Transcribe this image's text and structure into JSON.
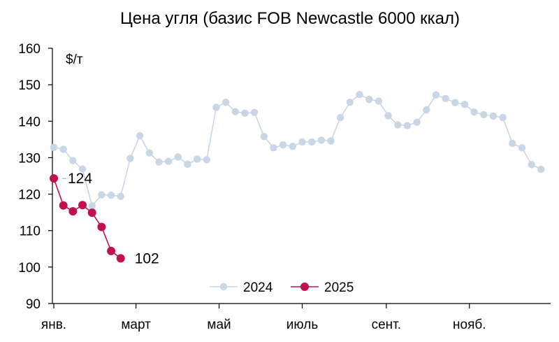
{
  "chart_data": {
    "type": "line",
    "title": "Цена угля (базис FOB Newcastle 6000 ккал)",
    "unit_label": "$/т",
    "ylim": [
      90,
      160
    ],
    "yticks": [
      90,
      100,
      110,
      120,
      130,
      140,
      150,
      160
    ],
    "x_unit": "week",
    "x_range": [
      0,
      52
    ],
    "xticks": [
      {
        "label": "янв.",
        "x": 0
      },
      {
        "label": "март",
        "x": 8.6
      },
      {
        "label": "май",
        "x": 17.3
      },
      {
        "label": "июль",
        "x": 26
      },
      {
        "label": "сент.",
        "x": 34.8
      },
      {
        "label": "нояб.",
        "x": 43.5
      }
    ],
    "legend_position": "bottom-center",
    "grid": false,
    "series": [
      {
        "name": "2024",
        "color": "#c9d6e6",
        "values": [
          {
            "x": 0,
            "y": 132.8
          },
          {
            "x": 1,
            "y": 132.3
          },
          {
            "x": 2,
            "y": 129.2
          },
          {
            "x": 3,
            "y": 126.9
          },
          {
            "x": 4,
            "y": 116.8
          },
          {
            "x": 5,
            "y": 119.8
          },
          {
            "x": 6,
            "y": 119.7
          },
          {
            "x": 7,
            "y": 119.4
          },
          {
            "x": 8,
            "y": 129.8
          },
          {
            "x": 9,
            "y": 136.0
          },
          {
            "x": 10,
            "y": 131.3
          },
          {
            "x": 11,
            "y": 128.8
          },
          {
            "x": 12,
            "y": 129.0
          },
          {
            "x": 13,
            "y": 130.2
          },
          {
            "x": 14,
            "y": 128.2
          },
          {
            "x": 15,
            "y": 129.6
          },
          {
            "x": 16,
            "y": 129.4
          },
          {
            "x": 17,
            "y": 143.8
          },
          {
            "x": 18,
            "y": 145.2
          },
          {
            "x": 19,
            "y": 142.6
          },
          {
            "x": 20,
            "y": 142.2
          },
          {
            "x": 21,
            "y": 142.4
          },
          {
            "x": 22,
            "y": 135.8
          },
          {
            "x": 23,
            "y": 132.7
          },
          {
            "x": 24,
            "y": 133.5
          },
          {
            "x": 25,
            "y": 133.1
          },
          {
            "x": 26,
            "y": 134.3
          },
          {
            "x": 27,
            "y": 134.3
          },
          {
            "x": 28,
            "y": 134.8
          },
          {
            "x": 29,
            "y": 134.6
          },
          {
            "x": 30,
            "y": 141.0
          },
          {
            "x": 31,
            "y": 145.2
          },
          {
            "x": 32,
            "y": 147.3
          },
          {
            "x": 33,
            "y": 146.0
          },
          {
            "x": 34,
            "y": 145.5
          },
          {
            "x": 35,
            "y": 141.5
          },
          {
            "x": 36,
            "y": 139.0
          },
          {
            "x": 37,
            "y": 138.8
          },
          {
            "x": 38,
            "y": 139.7
          },
          {
            "x": 39,
            "y": 143.1
          },
          {
            "x": 40,
            "y": 147.2
          },
          {
            "x": 41,
            "y": 146.2
          },
          {
            "x": 42,
            "y": 145.1
          },
          {
            "x": 43,
            "y": 144.6
          },
          {
            "x": 44,
            "y": 142.5
          },
          {
            "x": 45,
            "y": 141.8
          },
          {
            "x": 46,
            "y": 141.4
          },
          {
            "x": 47,
            "y": 141.0
          },
          {
            "x": 48,
            "y": 133.9
          },
          {
            "x": 49,
            "y": 132.7
          },
          {
            "x": 50,
            "y": 128.1
          },
          {
            "x": 51,
            "y": 126.8
          }
        ]
      },
      {
        "name": "2025",
        "color": "#c0134b",
        "values": [
          {
            "x": 0,
            "y": 124.3
          },
          {
            "x": 1,
            "y": 116.9
          },
          {
            "x": 2,
            "y": 115.3
          },
          {
            "x": 3,
            "y": 117.0
          },
          {
            "x": 4,
            "y": 114.9
          },
          {
            "x": 5,
            "y": 111.0
          },
          {
            "x": 6,
            "y": 104.4
          },
          {
            "x": 7,
            "y": 102.4
          }
        ]
      }
    ],
    "annotations": [
      {
        "text": "124",
        "series": "2025",
        "x": 0,
        "y": 124.3
      },
      {
        "text": "102",
        "series": "2025",
        "x": 7,
        "y": 102.4
      }
    ]
  }
}
